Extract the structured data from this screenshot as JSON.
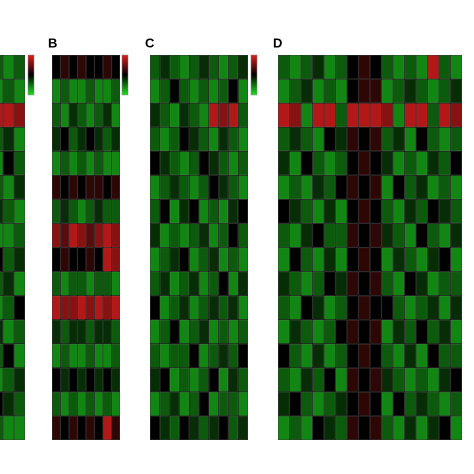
{
  "chart_data": [
    {
      "type": "heatmap",
      "colormap": [
        "#1ee01e",
        "#000000",
        "#e01e1e"
      ],
      "zlim": [
        0,
        10
      ],
      "values": [
        [
          3,
          2,
          3
        ],
        [
          2,
          3,
          2
        ],
        [
          9,
          9,
          8
        ],
        [
          3,
          4,
          2
        ],
        [
          2,
          5,
          3
        ],
        [
          3,
          2,
          4
        ],
        [
          4,
          3,
          2
        ],
        [
          2,
          2,
          3
        ],
        [
          5,
          3,
          4
        ],
        [
          3,
          4,
          2
        ],
        [
          2,
          3,
          5
        ],
        [
          4,
          2,
          3
        ],
        [
          3,
          5,
          2
        ],
        [
          2,
          3,
          4
        ],
        [
          5,
          4,
          3
        ],
        [
          3,
          2,
          2
        ]
      ]
    },
    {
      "type": "heatmap",
      "title": "B",
      "colormap": [
        "#1ee01e",
        "#000000",
        "#e01e1e"
      ],
      "zlim": [
        0,
        10
      ],
      "values": [
        [
          5,
          6,
          5,
          6,
          5,
          5,
          6,
          5
        ],
        [
          2,
          3,
          2,
          2,
          3,
          2,
          2,
          3
        ],
        [
          3,
          2,
          4,
          3,
          2,
          3,
          4,
          2
        ],
        [
          4,
          5,
          3,
          4,
          5,
          4,
          3,
          4
        ],
        [
          2,
          3,
          2,
          3,
          2,
          3,
          2,
          2
        ],
        [
          6,
          5,
          6,
          5,
          6,
          6,
          5,
          6
        ],
        [
          3,
          4,
          3,
          2,
          3,
          4,
          3,
          3
        ],
        [
          8,
          7,
          9,
          8,
          7,
          8,
          9,
          8
        ],
        [
          5,
          6,
          5,
          5,
          6,
          5,
          9,
          8
        ],
        [
          3,
          2,
          3,
          3,
          2,
          3,
          3,
          2
        ],
        [
          9,
          8,
          8,
          9,
          8,
          9,
          8,
          9
        ],
        [
          4,
          3,
          4,
          4,
          3,
          4,
          4,
          3
        ],
        [
          2,
          3,
          2,
          2,
          3,
          2,
          2,
          3
        ],
        [
          5,
          4,
          5,
          4,
          5,
          4,
          5,
          4
        ],
        [
          3,
          2,
          3,
          2,
          3,
          2,
          3,
          2
        ],
        [
          6,
          5,
          6,
          5,
          6,
          5,
          9,
          6
        ]
      ]
    },
    {
      "type": "heatmap",
      "title": "C",
      "colormap": [
        "#1ee01e",
        "#000000",
        "#e01e1e"
      ],
      "zlim": [
        0,
        10
      ],
      "values": [
        [
          3,
          4,
          3,
          2,
          3,
          4,
          3,
          2,
          3,
          4
        ],
        [
          2,
          3,
          5,
          3,
          2,
          3,
          2,
          3,
          5,
          2
        ],
        [
          4,
          3,
          2,
          4,
          3,
          2,
          9,
          8,
          9,
          3
        ],
        [
          3,
          2,
          3,
          5,
          4,
          3,
          2,
          4,
          3,
          2
        ],
        [
          5,
          4,
          3,
          2,
          3,
          5,
          4,
          3,
          2,
          3
        ],
        [
          2,
          3,
          4,
          3,
          2,
          3,
          5,
          4,
          3,
          2
        ],
        [
          3,
          5,
          2,
          4,
          5,
          2,
          3,
          2,
          4,
          5
        ],
        [
          4,
          2,
          3,
          2,
          3,
          4,
          2,
          3,
          5,
          3
        ],
        [
          2,
          3,
          4,
          5,
          2,
          3,
          4,
          2,
          3,
          2
        ],
        [
          3,
          4,
          2,
          3,
          4,
          2,
          3,
          5,
          2,
          4
        ],
        [
          5,
          2,
          3,
          4,
          2,
          3,
          4,
          3,
          4,
          2
        ],
        [
          2,
          3,
          5,
          2,
          3,
          4,
          2,
          3,
          2,
          3
        ],
        [
          3,
          2,
          3,
          3,
          5,
          2,
          3,
          4,
          3,
          5
        ],
        [
          4,
          5,
          2,
          3,
          2,
          3,
          5,
          2,
          4,
          3
        ],
        [
          2,
          3,
          4,
          2,
          3,
          5,
          2,
          3,
          3,
          2
        ],
        [
          5,
          4,
          3,
          5,
          4,
          3,
          4,
          5,
          3,
          4
        ]
      ]
    },
    {
      "type": "heatmap",
      "title": "D",
      "colormap": [
        "#1ee01e",
        "#000000",
        "#e01e1e"
      ],
      "zlim": [
        0,
        10
      ],
      "values": [
        [
          3,
          2,
          3,
          4,
          2,
          3,
          5,
          6,
          5,
          3,
          2,
          3,
          2,
          9,
          3,
          2
        ],
        [
          2,
          3,
          4,
          2,
          3,
          2,
          5,
          6,
          6,
          2,
          3,
          4,
          3,
          2,
          3,
          4
        ],
        [
          9,
          8,
          2,
          9,
          9,
          3,
          9,
          9,
          9,
          8,
          2,
          9,
          9,
          3,
          9,
          8
        ],
        [
          3,
          4,
          3,
          2,
          5,
          4,
          6,
          5,
          6,
          3,
          4,
          2,
          5,
          3,
          2,
          3
        ],
        [
          4,
          2,
          5,
          3,
          2,
          3,
          5,
          6,
          5,
          4,
          2,
          3,
          2,
          4,
          3,
          5
        ],
        [
          2,
          3,
          2,
          4,
          3,
          5,
          6,
          5,
          6,
          2,
          5,
          3,
          4,
          2,
          3,
          2
        ],
        [
          5,
          4,
          3,
          2,
          4,
          2,
          5,
          6,
          5,
          3,
          2,
          4,
          3,
          5,
          4,
          3
        ],
        [
          3,
          2,
          4,
          5,
          3,
          3,
          6,
          5,
          6,
          4,
          3,
          2,
          5,
          3,
          2,
          4
        ],
        [
          2,
          5,
          3,
          2,
          4,
          2,
          5,
          6,
          5,
          2,
          4,
          3,
          2,
          4,
          5,
          2
        ],
        [
          4,
          3,
          2,
          3,
          5,
          4,
          6,
          5,
          6,
          3,
          2,
          5,
          4,
          2,
          3,
          3
        ],
        [
          3,
          2,
          5,
          4,
          2,
          3,
          5,
          6,
          5,
          5,
          3,
          2,
          3,
          4,
          2,
          4
        ],
        [
          2,
          4,
          3,
          2,
          3,
          5,
          6,
          5,
          6,
          2,
          4,
          3,
          5,
          3,
          4,
          2
        ],
        [
          5,
          3,
          2,
          4,
          2,
          3,
          5,
          6,
          5,
          3,
          2,
          4,
          2,
          5,
          3,
          3
        ],
        [
          3,
          2,
          4,
          3,
          5,
          2,
          6,
          5,
          6,
          4,
          3,
          2,
          3,
          2,
          4,
          5
        ],
        [
          4,
          5,
          3,
          2,
          3,
          4,
          5,
          6,
          5,
          2,
          5,
          3,
          4,
          3,
          2,
          3
        ],
        [
          2,
          3,
          2,
          5,
          4,
          3,
          6,
          5,
          6,
          3,
          2,
          4,
          2,
          4,
          5,
          2
        ]
      ]
    }
  ]
}
